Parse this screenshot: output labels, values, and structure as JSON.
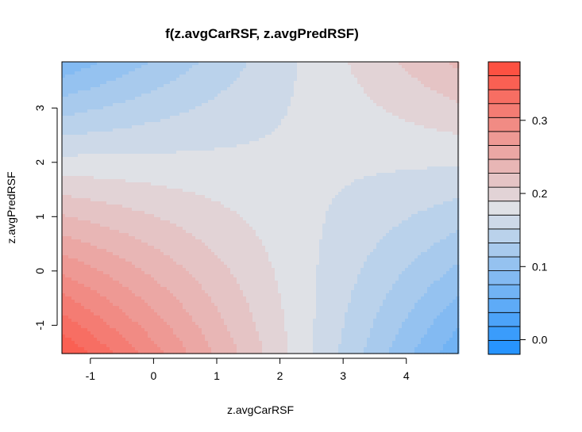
{
  "chart_data": {
    "type": "heatmap",
    "subtype": "filled-contour",
    "title": "f(z.avgCarRSF, z.avgPredRSF)",
    "xlabel": "z.avgCarRSF",
    "ylabel": "z.avgPredRSF",
    "xlim": [
      -1.45,
      4.82
    ],
    "ylim": [
      -1.52,
      3.85
    ],
    "x_ticks": [
      -1,
      0,
      1,
      2,
      3,
      4
    ],
    "y_ticks": [
      -1,
      0,
      1,
      2,
      3
    ],
    "saddle": {
      "x": 2.15,
      "y": 1.9,
      "value": 0.175
    },
    "surface_samples": [
      {
        "x": -1.45,
        "y": -1.52,
        "f": 0.37
      },
      {
        "x": 0.0,
        "y": 0.0,
        "f": 0.24
      },
      {
        "x": 4.82,
        "y": 3.85,
        "f": 0.22
      },
      {
        "x": -1.45,
        "y": 3.85,
        "f": 0.08
      },
      {
        "x": 4.82,
        "y": -1.52,
        "f": 0.0
      }
    ],
    "legend": {
      "type": "colorbar",
      "position": "right",
      "range": [
        -0.02,
        0.38
      ],
      "levels": 21,
      "ticks": [
        0.0,
        0.1,
        0.2,
        0.3
      ],
      "tick_labels": [
        "0.0",
        "0.1",
        "0.2",
        "0.3"
      ],
      "colors": {
        "low": "#1E90FF",
        "mid": "#DFE1E6",
        "high": "#FF4A3A"
      }
    }
  }
}
